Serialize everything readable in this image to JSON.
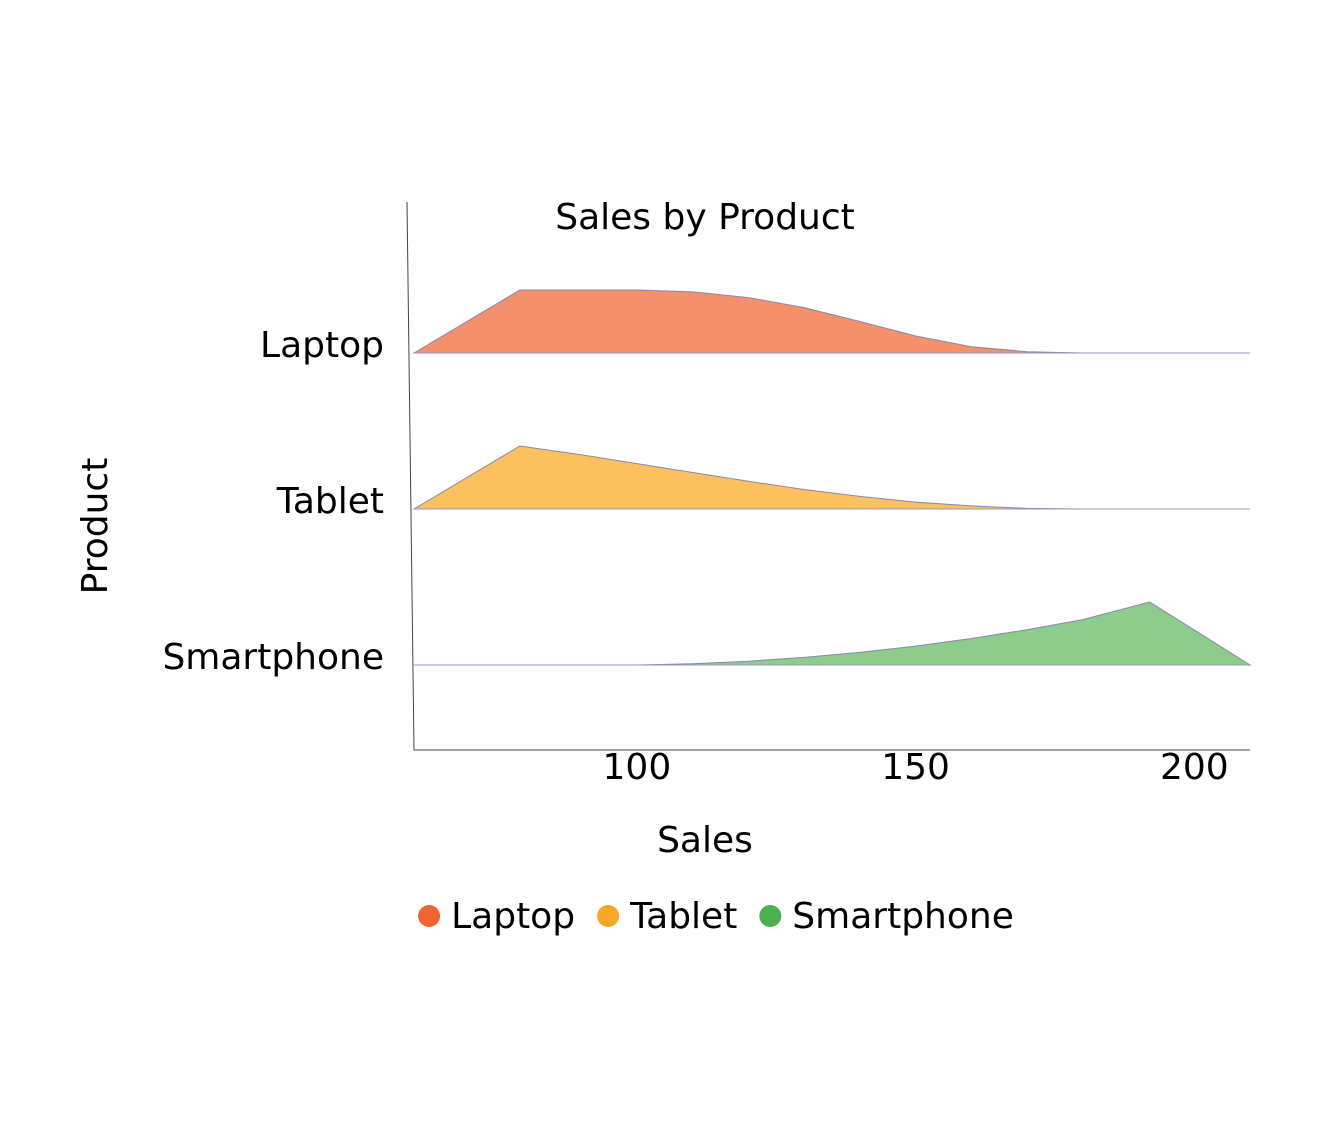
{
  "chart_data": {
    "type": "area",
    "subtype": "ridgeline",
    "title": "Sales by Product",
    "xlabel": "Sales",
    "ylabel": "Product",
    "xlim": [
      60,
      210
    ],
    "x_ticks": [
      100,
      150,
      200
    ],
    "grid": false,
    "legend_position": "bottom-center",
    "categories": [
      "Laptop",
      "Tablet",
      "Smartphone"
    ],
    "series": [
      {
        "name": "Laptop",
        "color": "#F26430",
        "fill": "#F5906D",
        "x": [
          60,
          79,
          100,
          110,
          120,
          130,
          140,
          150,
          160,
          170,
          180,
          190,
          200,
          210
        ],
        "y": [
          0,
          1.0,
          1.0,
          0.97,
          0.88,
          0.72,
          0.5,
          0.27,
          0.1,
          0.02,
          0.0,
          0.0,
          0.0,
          0.0
        ]
      },
      {
        "name": "Tablet",
        "color": "#F9A825",
        "fill": "#FAC15E",
        "x": [
          60,
          79,
          90,
          100,
          110,
          120,
          130,
          140,
          150,
          160,
          170,
          180,
          190,
          200,
          210
        ],
        "y": [
          0,
          1.0,
          0.86,
          0.72,
          0.58,
          0.44,
          0.31,
          0.2,
          0.11,
          0.05,
          0.01,
          0.0,
          0.0,
          0.0,
          0.0
        ]
      },
      {
        "name": "Smartphone",
        "color": "#4CAF50",
        "fill": "#8DCC8C",
        "x": [
          60,
          80,
          100,
          110,
          120,
          130,
          140,
          150,
          160,
          170,
          180,
          192,
          210
        ],
        "y": [
          0,
          0,
          0.0,
          0.02,
          0.06,
          0.12,
          0.2,
          0.3,
          0.42,
          0.56,
          0.72,
          1.0,
          0
        ]
      }
    ]
  }
}
